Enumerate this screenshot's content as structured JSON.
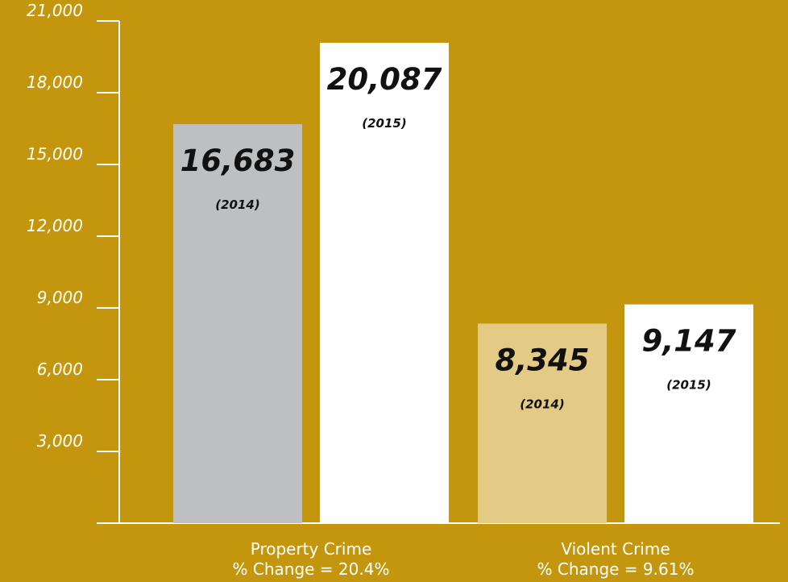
{
  "chart_data": {
    "type": "bar",
    "title": "",
    "xlabel": "",
    "ylabel": "",
    "ylim": [
      0,
      21000
    ],
    "y_ticks": [
      3000,
      6000,
      9000,
      12000,
      15000,
      18000,
      21000
    ],
    "y_tick_labels": [
      "3,000",
      "6,000",
      "9,000",
      "12,000",
      "15,000",
      "18,000",
      "21,000"
    ],
    "grid": false,
    "legend": "none",
    "groups": [
      {
        "line1": "Property Crime",
        "line2": "% Change = 20.4%",
        "bars": [
          {
            "value": 16683,
            "value_label": "16,683",
            "year_label": "(2014)",
            "color": "#bebfc1"
          },
          {
            "value": 20087,
            "value_label": "20,087",
            "year_label": "(2015)",
            "color": "#ffffff"
          }
        ]
      },
      {
        "line1": "Violent Crime",
        "line2": "% Change = 9.61%",
        "bars": [
          {
            "value": 8345,
            "value_label": "8,345",
            "year_label": "(2014)",
            "color": "#e3cb86"
          },
          {
            "value": 9147,
            "value_label": "9,147",
            "year_label": "(2015)",
            "color": "#ffffff"
          }
        ]
      }
    ],
    "colors": {
      "background": "#c4960d",
      "axis": "#ffffff",
      "text": "#111111"
    }
  }
}
